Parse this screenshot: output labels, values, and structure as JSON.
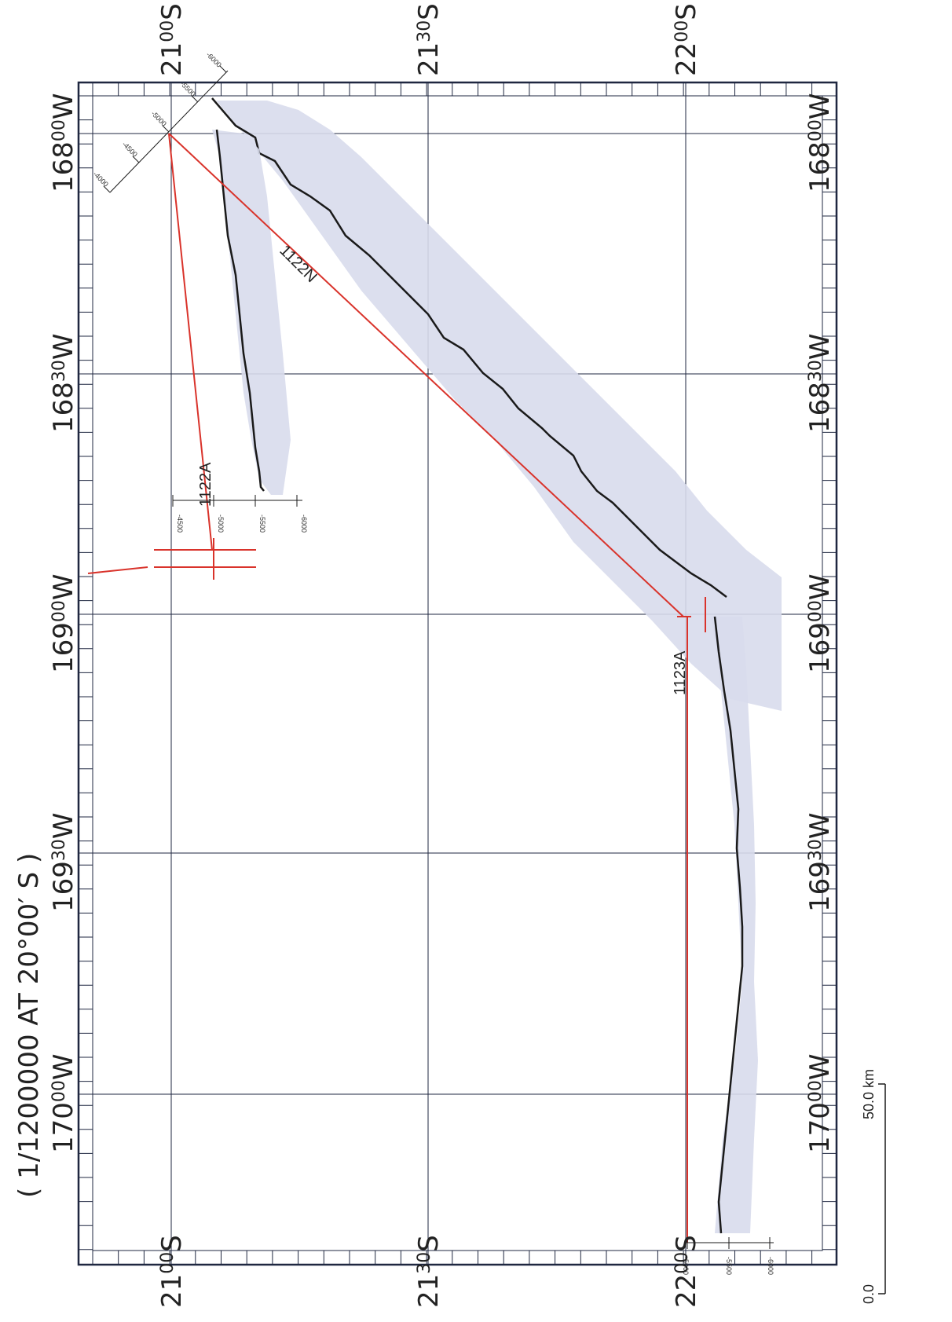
{
  "map": {
    "scale_title": "( 1/1200000 AT 20°00′ S )",
    "longitudes": [
      {
        "deg": "170",
        "min": "00",
        "hemi": "W"
      },
      {
        "deg": "169",
        "min": "30",
        "hemi": "W"
      },
      {
        "deg": "169",
        "min": "00",
        "hemi": "W"
      },
      {
        "deg": "168",
        "min": "30",
        "hemi": "W"
      },
      {
        "deg": "168",
        "min": "00",
        "hemi": "W"
      }
    ],
    "latitudes": [
      {
        "deg": "21",
        "min": "00",
        "hemi": "S"
      },
      {
        "deg": "21",
        "min": "30",
        "hemi": "S"
      },
      {
        "deg": "22",
        "min": "00",
        "hemi": "S"
      }
    ],
    "lines": {
      "line_a": "1122A",
      "line_n": "1122N",
      "line_b": "1123A"
    },
    "depth_ticks_a": [
      "-4500",
      "-5000",
      "-5500",
      "-6000"
    ],
    "depth_ticks_b": [
      "-5000",
      "-5500",
      "-6000"
    ],
    "depth_ticks_c": [
      "-4000",
      "-4500",
      "-5000",
      "-5500",
      "-6000"
    ],
    "scale_bar": {
      "start": "0.0",
      "end": "50.0 km"
    },
    "colors": {
      "track": "#d9332b",
      "grid": "#1f2740",
      "profile_fill": "#d8dcec",
      "profile_line": "#1a1a1a"
    }
  }
}
